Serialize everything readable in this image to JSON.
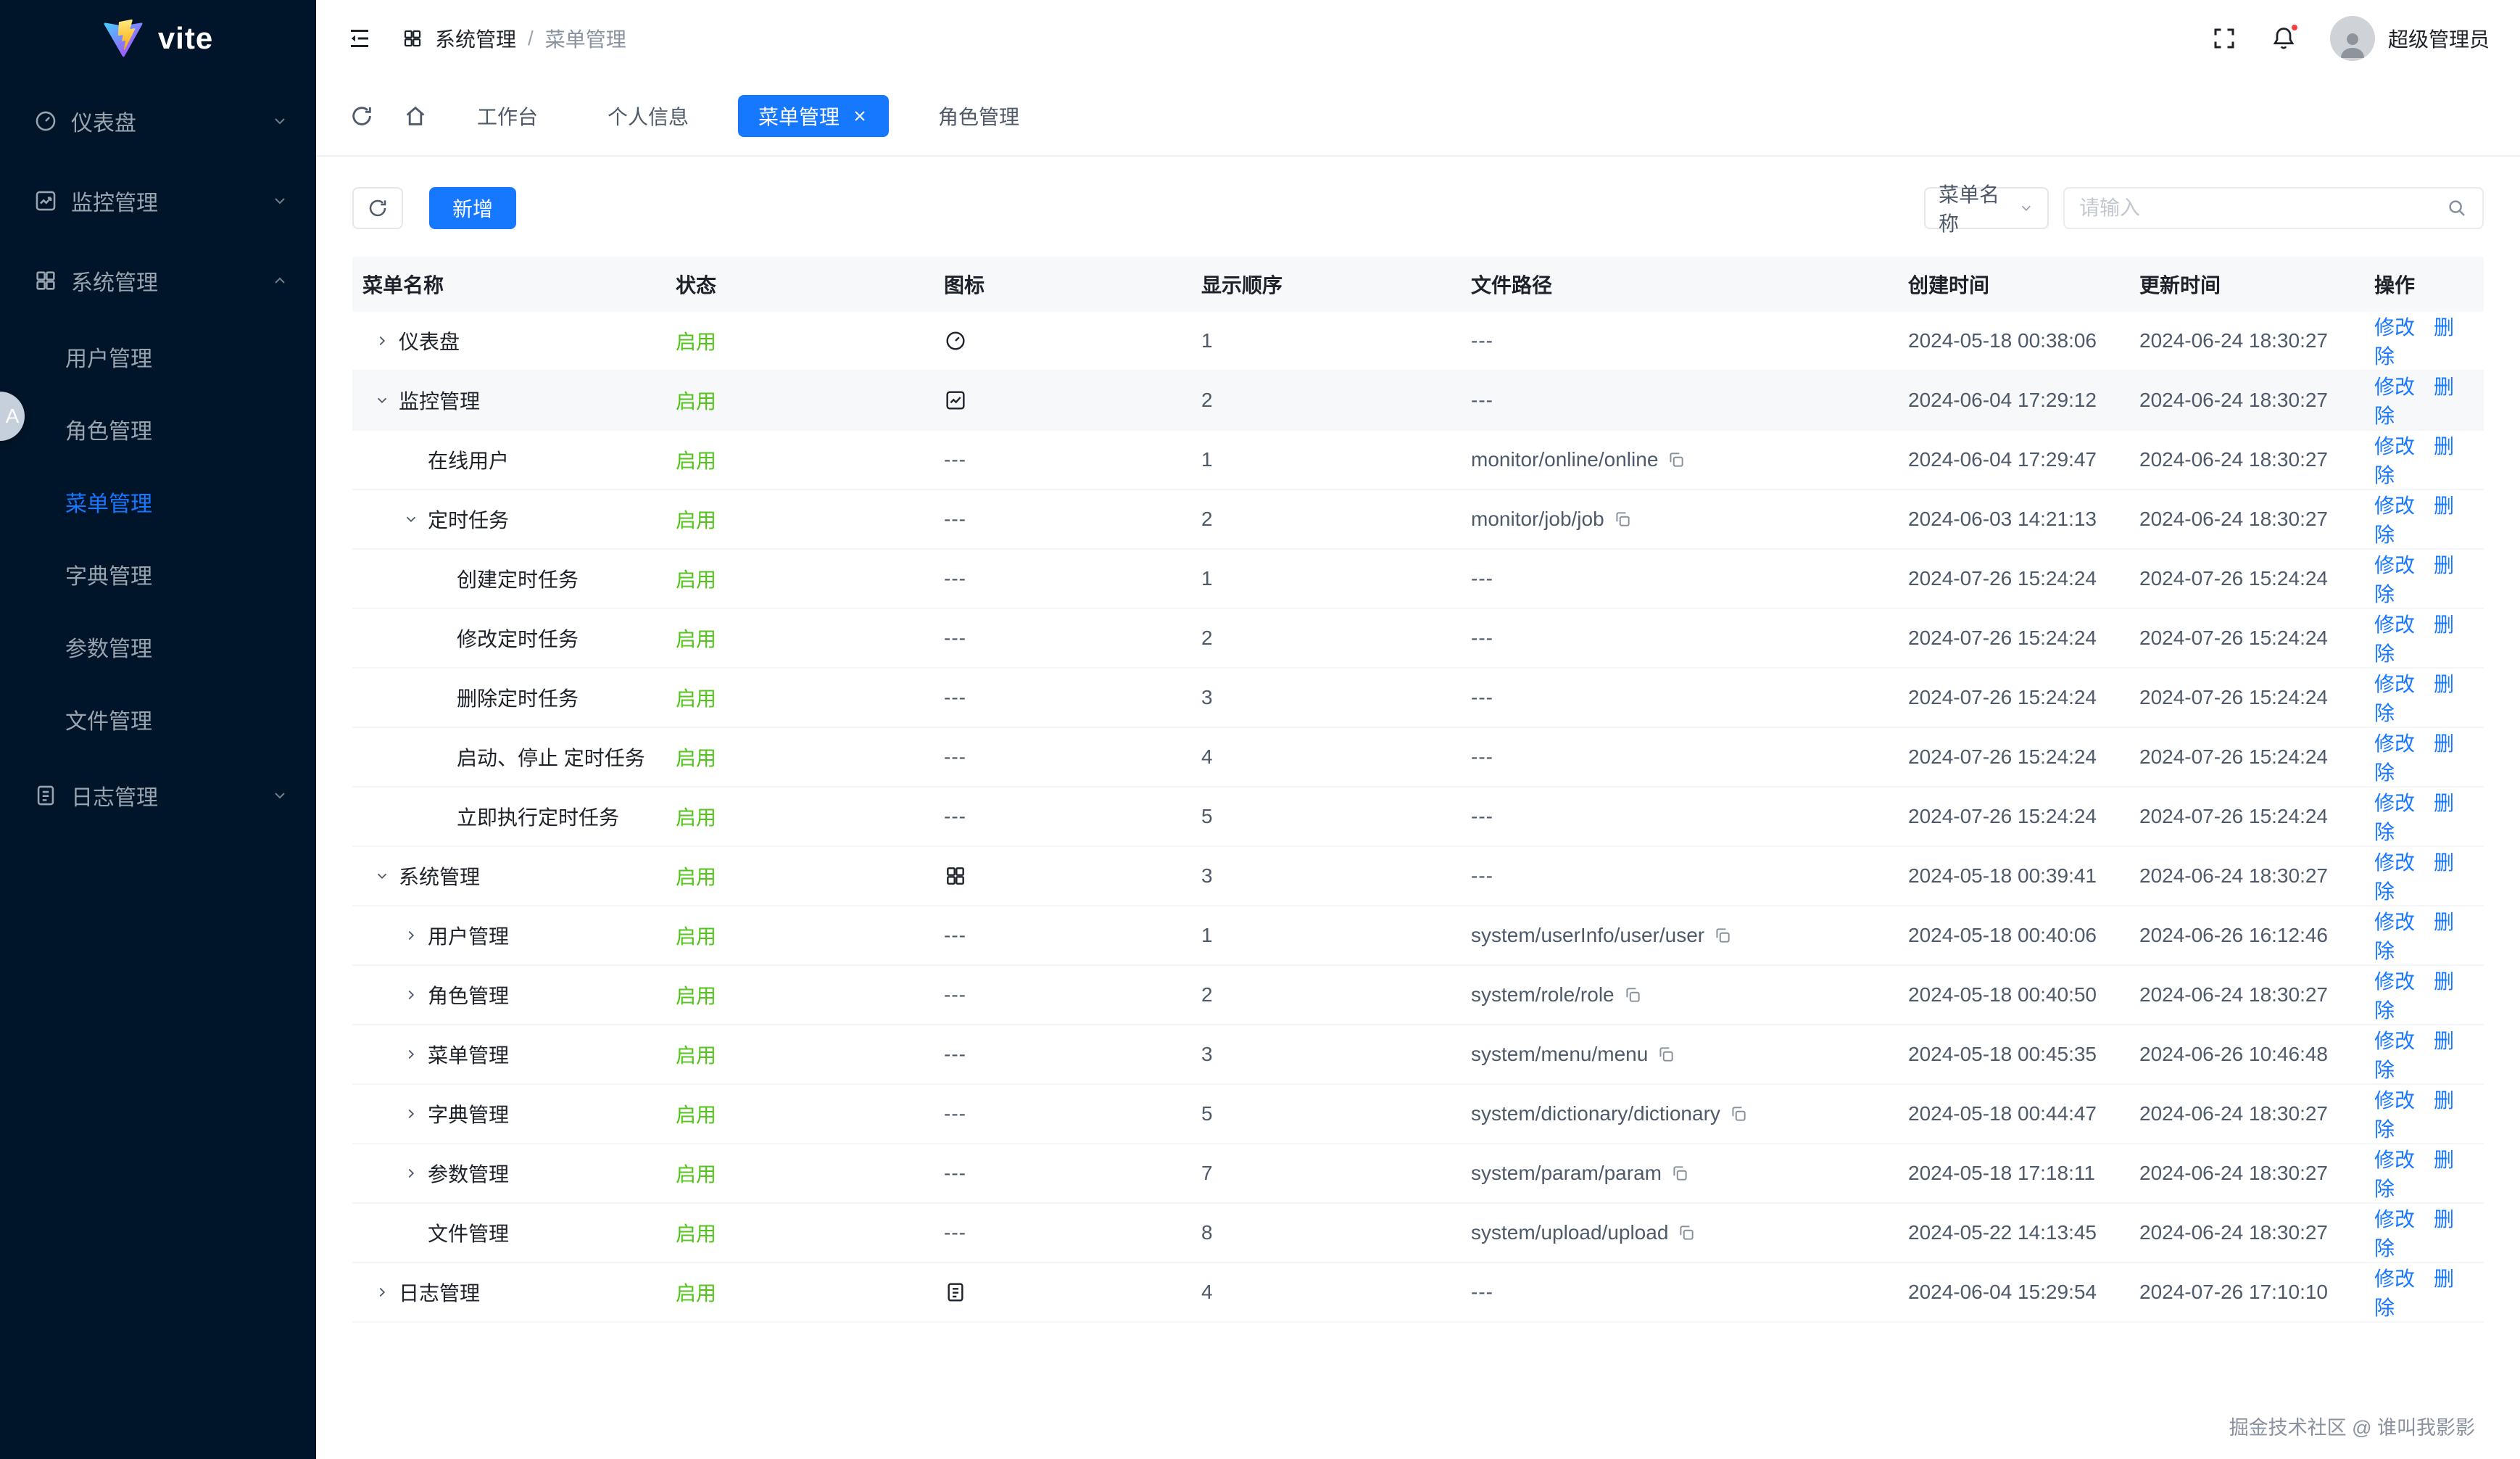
{
  "colors": {
    "accent": "#1677ff",
    "success": "#52c41a",
    "sidebar_bg": "#001529"
  },
  "brand": {
    "name": "vite"
  },
  "sidebar": {
    "groups": [
      {
        "label": "仪表盘",
        "icon": "dashboard-icon"
      },
      {
        "label": "监控管理",
        "icon": "monitor-icon"
      },
      {
        "label": "系统管理",
        "icon": "system-icon",
        "expanded": true
      },
      {
        "label": "日志管理",
        "icon": "log-icon"
      }
    ],
    "system_children": [
      {
        "label": "用户管理"
      },
      {
        "label": "角色管理"
      },
      {
        "label": "菜单管理",
        "active": true
      },
      {
        "label": "字典管理"
      },
      {
        "label": "参数管理"
      },
      {
        "label": "文件管理"
      }
    ]
  },
  "header": {
    "breadcrumb": {
      "first": "系统管理",
      "separator": "/",
      "current": "菜单管理"
    },
    "user_name": "超级管理员"
  },
  "tabs": [
    {
      "label": "工作台"
    },
    {
      "label": "个人信息"
    },
    {
      "label": "菜单管理",
      "active": true,
      "closable": true
    },
    {
      "label": "角色管理"
    }
  ],
  "toolbar": {
    "add_label": "新增",
    "filter_field": "菜单名称",
    "search_placeholder": "请输入"
  },
  "table": {
    "columns": [
      "菜单名称",
      "状态",
      "图标",
      "显示顺序",
      "文件路径",
      "创建时间",
      "更新时间",
      "操作"
    ],
    "empty": "---",
    "actions": {
      "edit": "修改",
      "delete": "删除"
    },
    "rows": [
      {
        "name": "仪表盘",
        "level": 0,
        "arrow": "right",
        "status": "启用",
        "icon": "dashboard",
        "order": "1",
        "path": "",
        "created": "2024-05-18 00:38:06",
        "updated": "2024-06-24 18:30:27"
      },
      {
        "name": "监控管理",
        "level": 0,
        "arrow": "down",
        "status": "启用",
        "icon": "monitor",
        "order": "2",
        "path": "",
        "created": "2024-06-04 17:29:12",
        "updated": "2024-06-24 18:30:27",
        "highlight": true
      },
      {
        "name": "在线用户",
        "level": 1,
        "arrow": "",
        "status": "启用",
        "icon": "",
        "order": "1",
        "path": "monitor/online/online",
        "created": "2024-06-04 17:29:47",
        "updated": "2024-06-24 18:30:27"
      },
      {
        "name": "定时任务",
        "level": 1,
        "arrow": "down",
        "status": "启用",
        "icon": "",
        "order": "2",
        "path": "monitor/job/job",
        "created": "2024-06-03 14:21:13",
        "updated": "2024-06-24 18:30:27"
      },
      {
        "name": "创建定时任务",
        "level": 2,
        "arrow": "",
        "status": "启用",
        "icon": "",
        "order": "1",
        "path": "",
        "created": "2024-07-26 15:24:24",
        "updated": "2024-07-26 15:24:24"
      },
      {
        "name": "修改定时任务",
        "level": 2,
        "arrow": "",
        "status": "启用",
        "icon": "",
        "order": "2",
        "path": "",
        "created": "2024-07-26 15:24:24",
        "updated": "2024-07-26 15:24:24"
      },
      {
        "name": "删除定时任务",
        "level": 2,
        "arrow": "",
        "status": "启用",
        "icon": "",
        "order": "3",
        "path": "",
        "created": "2024-07-26 15:24:24",
        "updated": "2024-07-26 15:24:24"
      },
      {
        "name": "启动、停止 定时任务",
        "level": 2,
        "arrow": "",
        "status": "启用",
        "icon": "",
        "order": "4",
        "path": "",
        "created": "2024-07-26 15:24:24",
        "updated": "2024-07-26 15:24:24"
      },
      {
        "name": "立即执行定时任务",
        "level": 2,
        "arrow": "",
        "status": "启用",
        "icon": "",
        "order": "5",
        "path": "",
        "created": "2024-07-26 15:24:24",
        "updated": "2024-07-26 15:24:24"
      },
      {
        "name": "系统管理",
        "level": 0,
        "arrow": "down",
        "status": "启用",
        "icon": "system",
        "order": "3",
        "path": "",
        "created": "2024-05-18 00:39:41",
        "updated": "2024-06-24 18:30:27"
      },
      {
        "name": "用户管理",
        "level": 1,
        "arrow": "right",
        "status": "启用",
        "icon": "",
        "order": "1",
        "path": "system/userInfo/user/user",
        "created": "2024-05-18 00:40:06",
        "updated": "2024-06-26 16:12:46"
      },
      {
        "name": "角色管理",
        "level": 1,
        "arrow": "right",
        "status": "启用",
        "icon": "",
        "order": "2",
        "path": "system/role/role",
        "created": "2024-05-18 00:40:50",
        "updated": "2024-06-24 18:30:27"
      },
      {
        "name": "菜单管理",
        "level": 1,
        "arrow": "right",
        "status": "启用",
        "icon": "",
        "order": "3",
        "path": "system/menu/menu",
        "created": "2024-05-18 00:45:35",
        "updated": "2024-06-26 10:46:48"
      },
      {
        "name": "字典管理",
        "level": 1,
        "arrow": "right",
        "status": "启用",
        "icon": "",
        "order": "5",
        "path": "system/dictionary/dictionary",
        "created": "2024-05-18 00:44:47",
        "updated": "2024-06-24 18:30:27"
      },
      {
        "name": "参数管理",
        "level": 1,
        "arrow": "right",
        "status": "启用",
        "icon": "",
        "order": "7",
        "path": "system/param/param",
        "created": "2024-05-18 17:18:11",
        "updated": "2024-06-24 18:30:27"
      },
      {
        "name": "文件管理",
        "level": 1,
        "arrow": "",
        "status": "启用",
        "icon": "",
        "order": "8",
        "path": "system/upload/upload",
        "created": "2024-05-22 14:13:45",
        "updated": "2024-06-24 18:30:27"
      },
      {
        "name": "日志管理",
        "level": 0,
        "arrow": "right",
        "status": "启用",
        "icon": "log",
        "order": "4",
        "path": "",
        "created": "2024-06-04 15:29:54",
        "updated": "2024-07-26 17:10:10"
      }
    ]
  },
  "floating_badge": "A",
  "footer": "掘金技术社区 @ 谁叫我影影"
}
